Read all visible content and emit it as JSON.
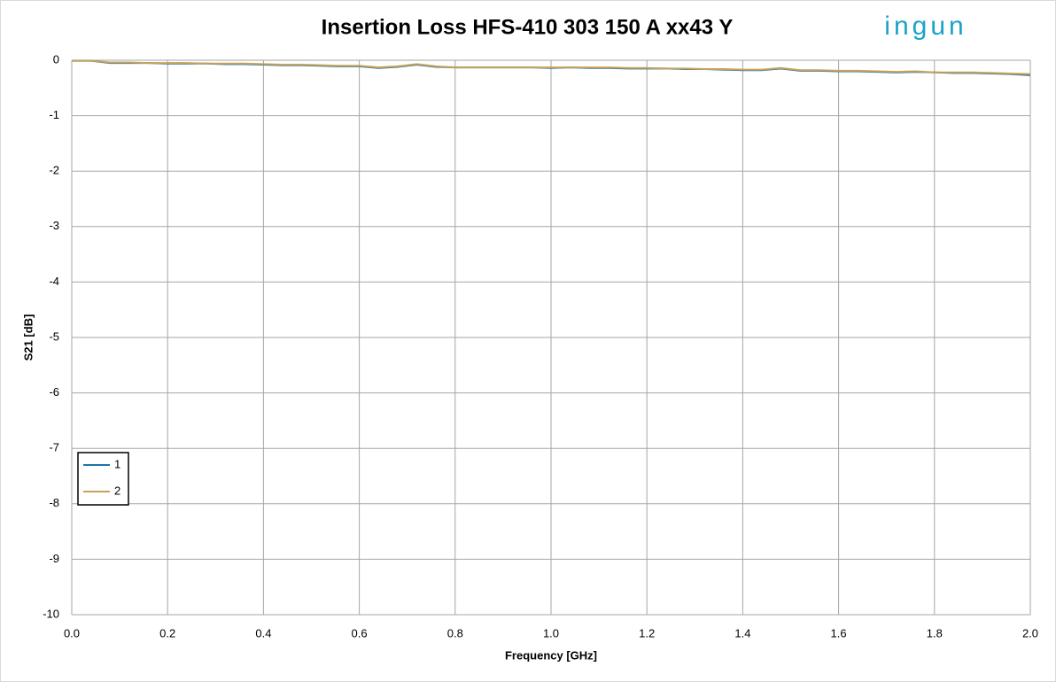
{
  "chart_data": {
    "type": "line",
    "title": "Insertion Loss HFS-410 303 150 A xx43 Y",
    "logo": "ingun",
    "x_label": "Frequency [GHz]",
    "y_label": "S21 [dB]",
    "x": [
      0.0,
      0.04,
      0.08,
      0.12,
      0.16,
      0.2,
      0.24,
      0.28,
      0.32,
      0.36,
      0.4,
      0.44,
      0.48,
      0.52,
      0.56,
      0.6,
      0.64,
      0.68,
      0.72,
      0.76,
      0.8,
      0.84,
      0.88,
      0.92,
      0.96,
      1.0,
      1.04,
      1.08,
      1.12,
      1.16,
      1.2,
      1.24,
      1.28,
      1.32,
      1.36,
      1.4,
      1.44,
      1.48,
      1.52,
      1.56,
      1.6,
      1.64,
      1.68,
      1.72,
      1.76,
      1.8,
      1.84,
      1.88,
      1.92,
      1.96,
      2.0
    ],
    "series": [
      {
        "name": "1",
        "color": "#1b75a6",
        "values": [
          -0.01,
          -0.01,
          -0.05,
          -0.05,
          -0.05,
          -0.06,
          -0.06,
          -0.06,
          -0.07,
          -0.07,
          -0.08,
          -0.09,
          -0.09,
          -0.1,
          -0.11,
          -0.11,
          -0.14,
          -0.12,
          -0.08,
          -0.12,
          -0.13,
          -0.13,
          -0.13,
          -0.13,
          -0.13,
          -0.14,
          -0.13,
          -0.14,
          -0.14,
          -0.15,
          -0.15,
          -0.15,
          -0.16,
          -0.16,
          -0.17,
          -0.18,
          -0.18,
          -0.15,
          -0.19,
          -0.19,
          -0.2,
          -0.2,
          -0.21,
          -0.22,
          -0.21,
          -0.22,
          -0.23,
          -0.23,
          -0.24,
          -0.25,
          -0.27
        ]
      },
      {
        "name": "2",
        "color": "#c8a15a",
        "values": [
          -0.01,
          -0.01,
          -0.04,
          -0.04,
          -0.05,
          -0.05,
          -0.05,
          -0.06,
          -0.06,
          -0.06,
          -0.07,
          -0.08,
          -0.08,
          -0.09,
          -0.1,
          -0.1,
          -0.13,
          -0.11,
          -0.07,
          -0.11,
          -0.13,
          -0.13,
          -0.13,
          -0.13,
          -0.13,
          -0.13,
          -0.13,
          -0.13,
          -0.13,
          -0.14,
          -0.14,
          -0.15,
          -0.15,
          -0.16,
          -0.16,
          -0.17,
          -0.17,
          -0.14,
          -0.18,
          -0.18,
          -0.19,
          -0.19,
          -0.2,
          -0.21,
          -0.2,
          -0.22,
          -0.22,
          -0.22,
          -0.23,
          -0.24,
          -0.25
        ]
      }
    ],
    "xlim": [
      0,
      2
    ],
    "xticks": [
      {
        "value": 0,
        "label": "0.0"
      },
      0.2,
      0.4,
      0.6,
      0.8,
      {
        "value": 1,
        "label": "1.0"
      },
      1.2,
      1.4,
      1.6,
      1.8,
      {
        "value": 2,
        "label": "2.0"
      }
    ],
    "ylim": [
      -10,
      0
    ],
    "yticks": [
      0,
      -1,
      -2,
      -3,
      -4,
      -5,
      -6,
      -7,
      -8,
      -9,
      -10
    ],
    "grid": true,
    "legend": "lower-left"
  }
}
